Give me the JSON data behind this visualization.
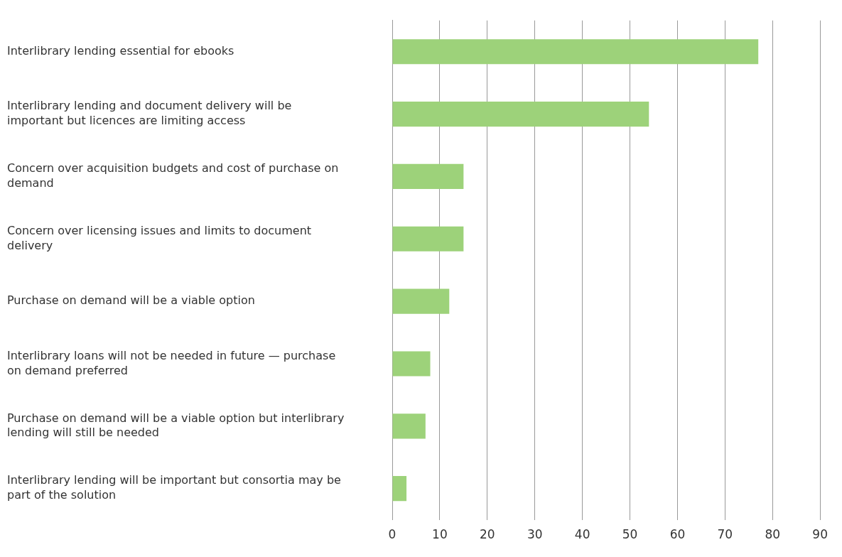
{
  "chart_data": {
    "type": "bar",
    "orientation": "horizontal",
    "categories": [
      "Interlibrary lending essential for ebooks",
      "Interlibrary lending and document delivery will be important but licences are limiting access",
      "Concern over acquisition budgets and cost of purchase on demand",
      "Concern over licensing issues and limits to document delivery",
      "Purchase on demand will be a viable option",
      "Interlibrary loans will not be needed in future — purchase on demand preferred",
      "Purchase on demand will be a viable option but interlibrary lending will still be needed",
      "Interlibrary lending will be important but consortia may be part of the solution"
    ],
    "values": [
      77,
      54,
      15,
      15,
      12,
      8,
      7,
      3
    ],
    "color": "#9dd27a",
    "xlim": [
      0,
      90
    ],
    "xticks": [
      0,
      10,
      20,
      30,
      40,
      50,
      60,
      70,
      80,
      90
    ],
    "grid": "x",
    "legend": false
  }
}
